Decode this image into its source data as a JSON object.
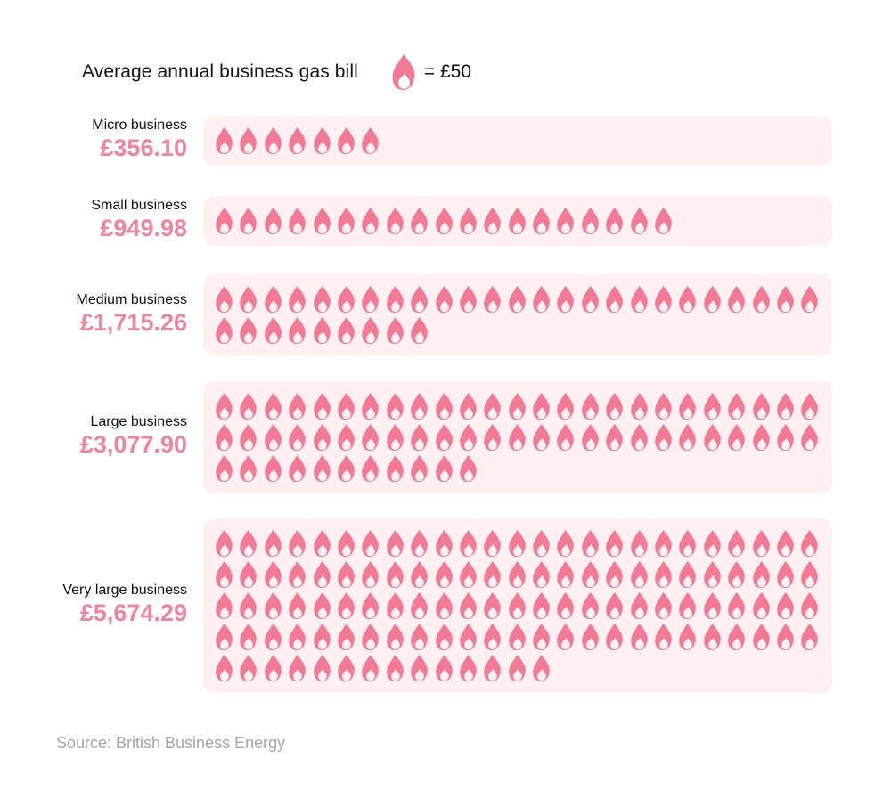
{
  "title": "Average annual business gas bill",
  "legend": {
    "icon": "flame-icon",
    "text": "= £50",
    "unit_value": 50
  },
  "colors": {
    "flame": "#f27a97",
    "value_text": "#ef859d",
    "panel_bg": "#fff1f1",
    "source_text": "#a5a5a5"
  },
  "chart_data": {
    "type": "bar",
    "title": "Average annual business gas bill",
    "categories": [
      "Micro business",
      "Small business",
      "Medium business",
      "Large business",
      "Very large business"
    ],
    "values": [
      356.1,
      949.98,
      1715.26,
      3077.9,
      5674.29
    ],
    "value_labels": [
      "£356.10",
      "£949.98",
      "£1,715.26",
      "£3,077.90",
      "£5,674.29"
    ],
    "icon_counts": [
      7,
      19,
      34,
      61,
      114
    ]
  },
  "source": "Source: British Business Energy"
}
